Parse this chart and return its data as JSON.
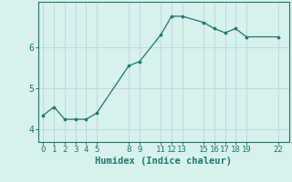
{
  "x": [
    0,
    1,
    2,
    3,
    4,
    5,
    8,
    9,
    11,
    12,
    13,
    15,
    16,
    17,
    18,
    19,
    22
  ],
  "y": [
    4.35,
    4.55,
    4.25,
    4.25,
    4.25,
    4.4,
    5.55,
    5.65,
    6.3,
    6.75,
    6.75,
    6.6,
    6.45,
    6.35,
    6.45,
    6.25,
    6.25
  ],
  "xticks": [
    0,
    1,
    2,
    3,
    4,
    5,
    8,
    9,
    11,
    12,
    13,
    15,
    16,
    17,
    18,
    19,
    22
  ],
  "yticks": [
    4,
    5,
    6
  ],
  "xlabel": "Humidex (Indice chaleur)",
  "line_color": "#1a7a6e",
  "bg_color": "#d8f0ee",
  "grid_color": "#b8deda",
  "ylim": [
    3.7,
    7.1
  ],
  "xlim": [
    -0.5,
    23.0
  ],
  "tick_fontsize": 6.5,
  "xlabel_fontsize": 7.5
}
